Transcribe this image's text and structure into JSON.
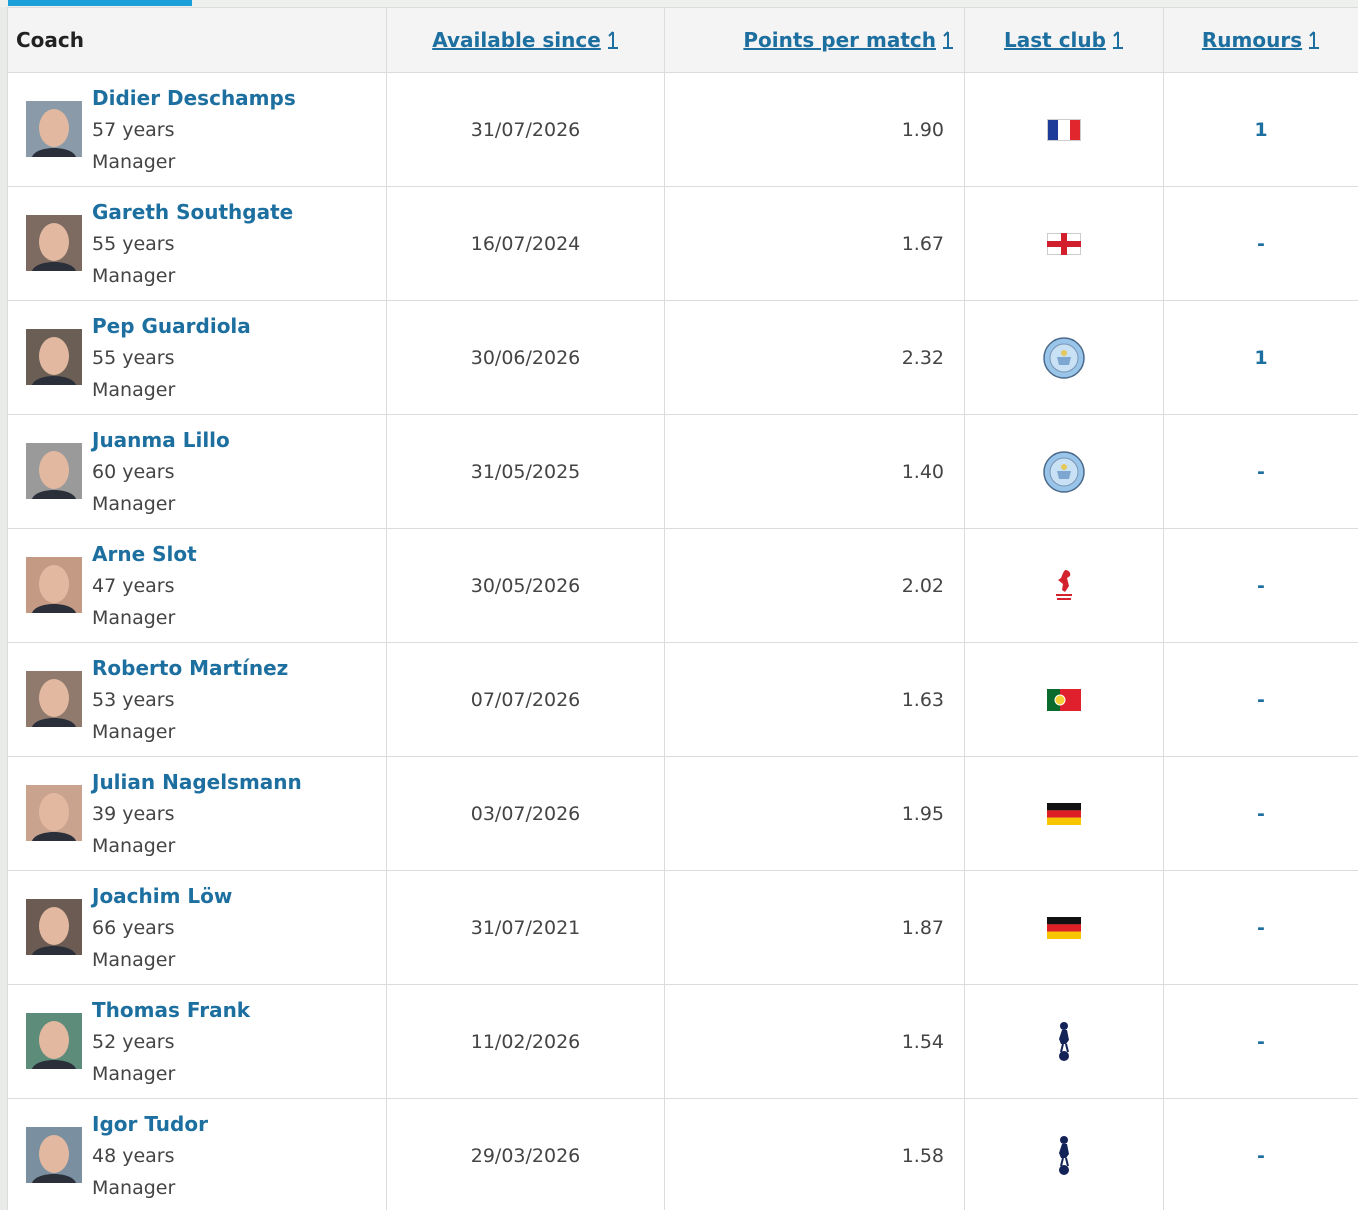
{
  "header": {
    "coach": "Coach",
    "available_since": "Available since",
    "points_per_match": "Points per match",
    "last_club": "Last club",
    "rumours": "Rumours"
  },
  "rows": [
    {
      "name": "Didier Deschamps",
      "age": "57 years",
      "role": "Manager",
      "available_since": "31/07/2026",
      "points_per_match": "1.90",
      "rumours": "1"
    },
    {
      "name": "Gareth Southgate",
      "age": "55 years",
      "role": "Manager",
      "available_since": "16/07/2024",
      "points_per_match": "1.67",
      "rumours": "-"
    },
    {
      "name": "Pep Guardiola",
      "age": "55 years",
      "role": "Manager",
      "available_since": "30/06/2026",
      "points_per_match": "2.32",
      "rumours": "1"
    },
    {
      "name": "Juanma Lillo",
      "age": "60 years",
      "role": "Manager",
      "available_since": "31/05/2025",
      "points_per_match": "1.40",
      "rumours": "-"
    },
    {
      "name": "Arne Slot",
      "age": "47 years",
      "role": "Manager",
      "available_since": "30/05/2026",
      "points_per_match": "2.02",
      "rumours": "-"
    },
    {
      "name": "Roberto Martínez",
      "age": "53 years",
      "role": "Manager",
      "available_since": "07/07/2026",
      "points_per_match": "1.63",
      "rumours": "-"
    },
    {
      "name": "Julian Nagelsmann",
      "age": "39 years",
      "role": "Manager",
      "available_since": "03/07/2026",
      "points_per_match": "1.95",
      "rumours": "-"
    },
    {
      "name": "Joachim Löw",
      "age": "66 years",
      "role": "Manager",
      "available_since": "31/07/2021",
      "points_per_match": "1.87",
      "rumours": "-"
    },
    {
      "name": "Thomas Frank",
      "age": "52 years",
      "role": "Manager",
      "available_since": "11/02/2026",
      "points_per_match": "1.54",
      "rumours": "-"
    },
    {
      "name": "Igor Tudor",
      "age": "48 years",
      "role": "Manager",
      "available_since": "29/03/2026",
      "points_per_match": "1.58",
      "rumours": "-"
    }
  ]
}
